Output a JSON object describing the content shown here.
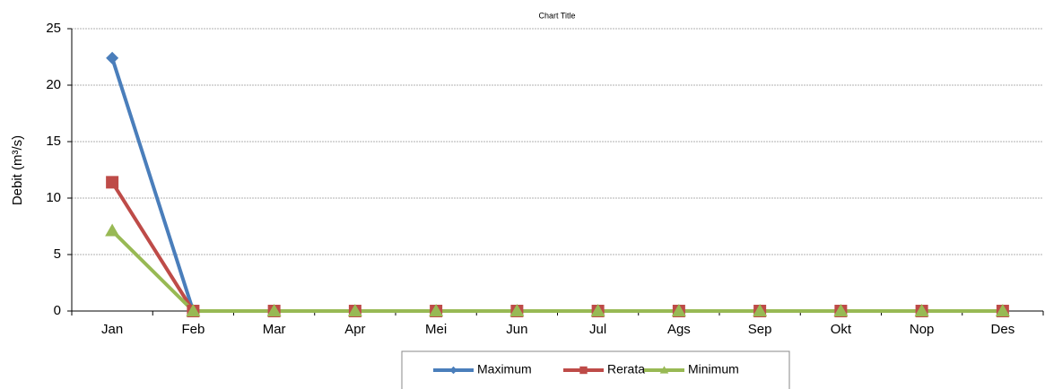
{
  "chart_data": {
    "type": "line",
    "title": "Chart Title",
    "y_label": "Debit (m³/s)",
    "categories": [
      "Jan",
      "Feb",
      "Mar",
      "Apr",
      "Mei",
      "Jun",
      "Jul",
      "Ags",
      "Sep",
      "Okt",
      "Nop",
      "Des"
    ],
    "series": [
      {
        "name": "Maximum",
        "color": "#4a7ebb",
        "marker": "diamond",
        "values": [
          22.4,
          0,
          0,
          0,
          0,
          0,
          0,
          0,
          0,
          0,
          0,
          0
        ]
      },
      {
        "name": "Rerata",
        "color": "#be4b48",
        "marker": "square",
        "values": [
          11.4,
          0,
          0,
          0,
          0,
          0,
          0,
          0,
          0,
          0,
          0,
          0
        ]
      },
      {
        "name": "Minimum",
        "color": "#98b954",
        "marker": "triangle",
        "values": [
          7.1,
          0,
          0,
          0,
          0,
          0,
          0,
          0,
          0,
          0,
          0,
          0
        ]
      }
    ],
    "ylim": [
      0,
      25
    ],
    "yticks": [
      0,
      5,
      10,
      15,
      20,
      25
    ],
    "grid": true,
    "legend": "bottom"
  }
}
